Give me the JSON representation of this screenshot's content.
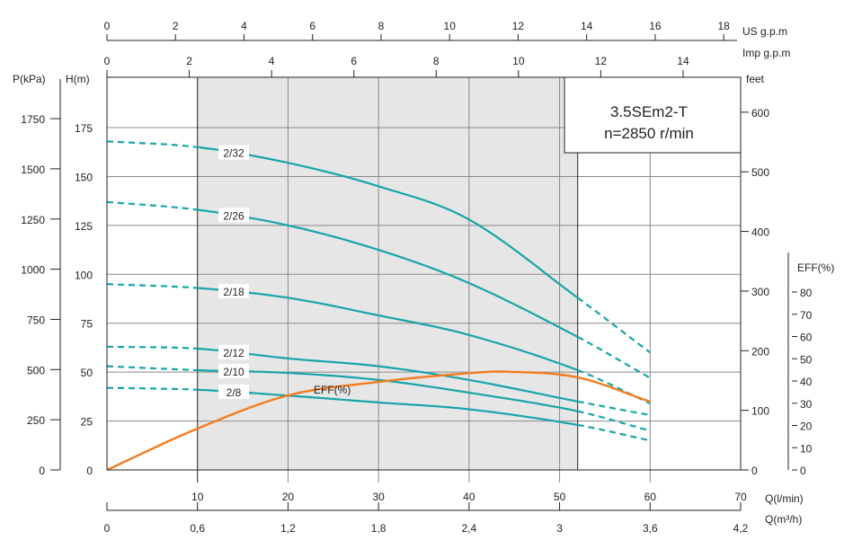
{
  "chart_data": {
    "type": "line",
    "title": "3.5SEm2-T",
    "subtitle": "n=2850 r/min",
    "xlabel": "Q(l/min)",
    "xlabel_m3h": "Q(m³/h)",
    "ylabel": "H(m)",
    "ylabel_kpa": "P(kPa)",
    "ylabel_feet": "feet",
    "ylabel_eff": "EFF(%)",
    "top_axis_us": "US  g.p.m",
    "top_axis_imp": "Imp  g.p.m",
    "xlim": [
      0,
      70
    ],
    "ylim": [
      0,
      200
    ],
    "grid": true,
    "recommended_range_lmin": [
      10,
      52
    ],
    "x_ticks": [
      10,
      20,
      30,
      40,
      50,
      60,
      70
    ],
    "m3h_ticks": [
      "0",
      "0,6",
      "1,2",
      "1,8",
      "2,4",
      "3",
      "3,6",
      "4,2"
    ],
    "h_ticks": [
      0,
      25,
      50,
      75,
      100,
      125,
      150,
      175
    ],
    "kpa_ticks": [
      0,
      250,
      500,
      750,
      1000,
      1250,
      1500,
      1750
    ],
    "feet_ticks": [
      0,
      100,
      200,
      300,
      400,
      500,
      600
    ],
    "eff_ticks": [
      0,
      10,
      20,
      30,
      40,
      50,
      60,
      70,
      80
    ],
    "us_gpm_ticks": [
      0,
      2,
      4,
      6,
      8,
      10,
      12,
      14,
      16,
      18
    ],
    "imp_gpm_ticks": [
      0,
      2,
      4,
      6,
      8,
      10,
      12,
      14
    ],
    "series": [
      {
        "name": "2/32",
        "x": [
          0,
          10,
          20,
          30,
          40,
          52,
          60
        ],
        "values": [
          168,
          165,
          157,
          145,
          128,
          88,
          60
        ]
      },
      {
        "name": "2/26",
        "x": [
          0,
          10,
          20,
          30,
          40,
          52,
          60
        ],
        "values": [
          137,
          133,
          125,
          112.5,
          95.5,
          68,
          47
        ]
      },
      {
        "name": "2/18",
        "x": [
          0,
          10,
          20,
          30,
          40,
          52,
          60
        ],
        "values": [
          95,
          93,
          88,
          79,
          69,
          51,
          34
        ]
      },
      {
        "name": "2/12",
        "x": [
          0,
          10,
          20,
          30,
          40,
          52,
          60
        ],
        "values": [
          63,
          62,
          57,
          53,
          46,
          35,
          28
        ]
      },
      {
        "name": "2/10",
        "x": [
          0,
          10,
          20,
          30,
          40,
          52,
          60
        ],
        "values": [
          53,
          51,
          49.6,
          46,
          39.5,
          30,
          20
        ]
      },
      {
        "name": "2/8",
        "x": [
          0,
          10,
          20,
          30,
          40,
          52,
          60
        ],
        "values": [
          42,
          41,
          38,
          34.5,
          31,
          23,
          15
        ]
      }
    ],
    "efficiency": {
      "name": "EFF(%)",
      "x": [
        0,
        10,
        20,
        30,
        40,
        44,
        52,
        60
      ],
      "values": [
        0,
        18.6,
        33.5,
        39.6,
        43.5,
        44.2,
        41.6,
        30.7
      ]
    },
    "colors": {
      "head": "#17a5a9",
      "eff": "#f47c20",
      "shade": "#e6e6e6",
      "grid": "#8a8a8a"
    }
  }
}
